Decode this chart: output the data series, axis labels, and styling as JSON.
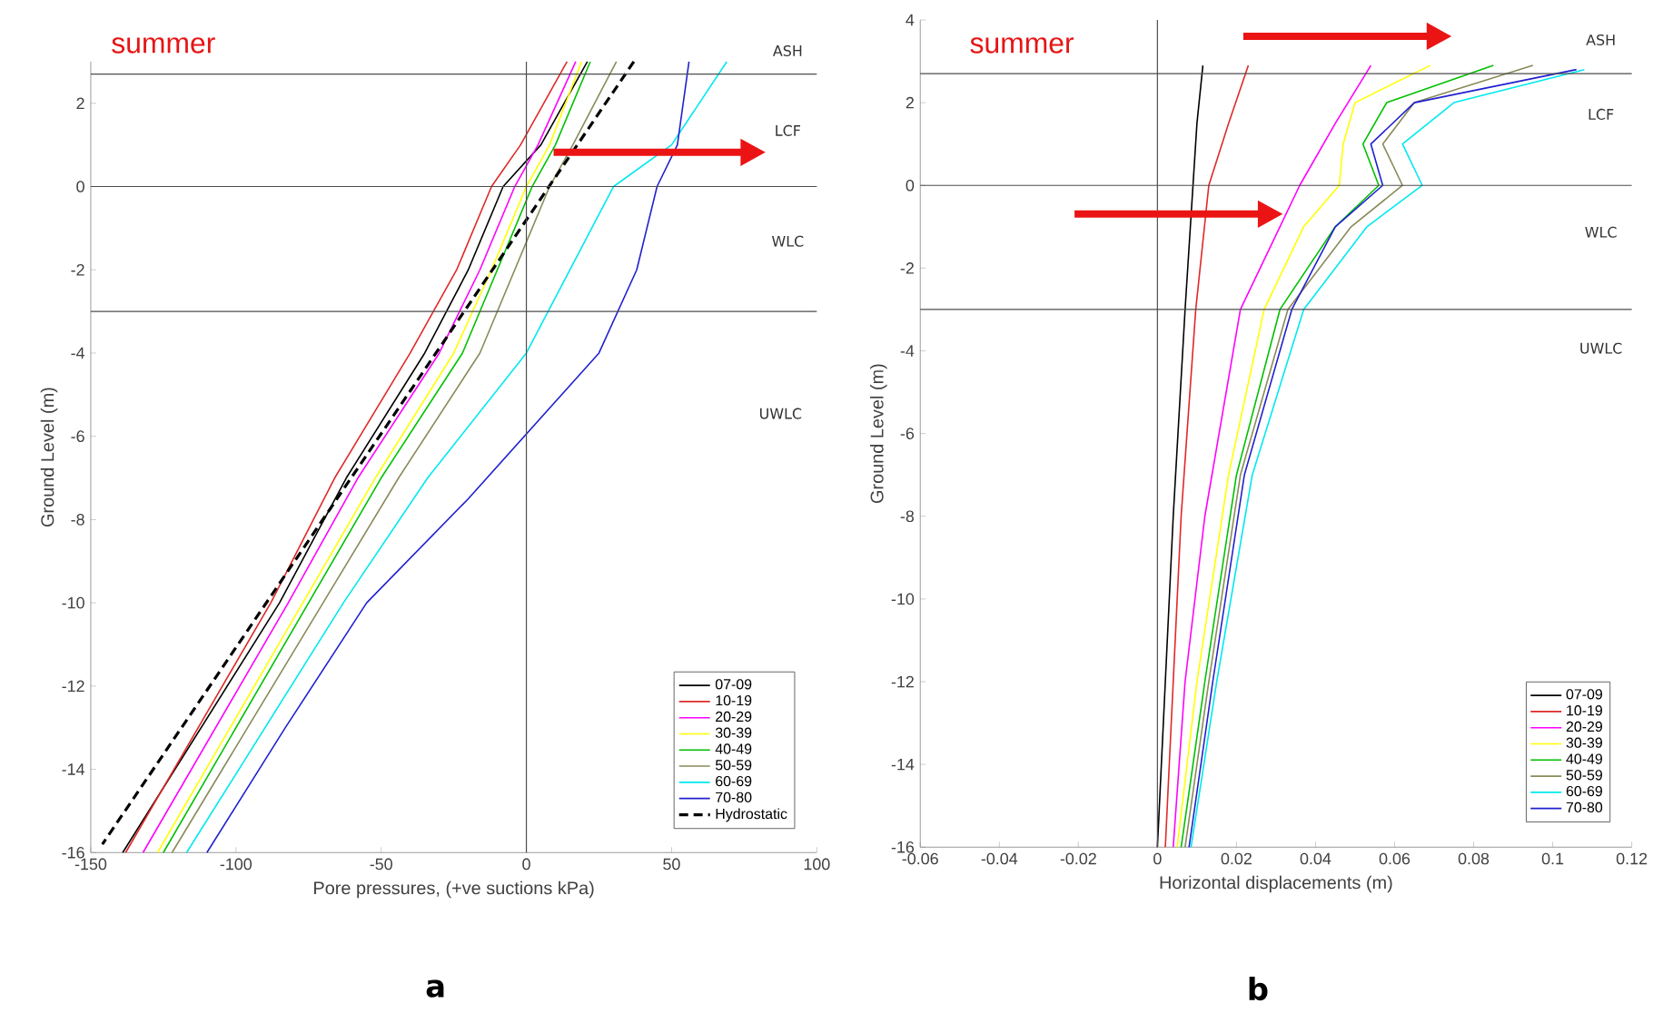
{
  "chart_data": [
    {
      "type": "line",
      "xlabel": "Pore pressures, (+ve suctions kPa)",
      "ylabel": "Ground Level (m)",
      "xlim": [
        -150,
        100
      ],
      "ylim": [
        -16,
        3
      ],
      "xticks": [
        -150,
        -100,
        -50,
        0,
        50,
        100
      ],
      "yticks": [
        -16,
        -14,
        -12,
        -10,
        -8,
        -6,
        -4,
        -2,
        0,
        2
      ],
      "legend": "bottom right",
      "ref_lines": [
        {
          "axis": "y",
          "value": 2.7
        },
        {
          "axis": "y",
          "value": 0
        },
        {
          "axis": "y",
          "value": -3
        },
        {
          "axis": "x",
          "value": 0
        }
      ],
      "annotations": [
        "summer",
        "a",
        "ASH",
        "LCF",
        "WLC",
        "UWLC"
      ],
      "series": [
        {
          "name": "07-09",
          "color": "#000000",
          "x": [
            21,
            5,
            -8,
            -20,
            -35,
            -62,
            -85,
            -112,
            -139
          ],
          "values": [
            3,
            1,
            0,
            -2,
            -4,
            -7,
            -10,
            -13,
            -16
          ]
        },
        {
          "name": "10-19",
          "color": "#e02828",
          "x": [
            14,
            -2,
            -12,
            -24,
            -40,
            -66,
            -88,
            -113,
            -138
          ],
          "values": [
            3,
            1,
            0,
            -2,
            -4,
            -7,
            -10,
            -13,
            -16
          ]
        },
        {
          "name": "20-29",
          "color": "#ff00ff",
          "x": [
            17,
            4,
            -4,
            -16,
            -30,
            -58,
            -82,
            -107,
            -132
          ],
          "values": [
            3,
            1,
            0,
            -2,
            -4,
            -7,
            -10,
            -13,
            -16
          ]
        },
        {
          "name": "30-39",
          "color": "#ffff00",
          "x": [
            19,
            8,
            0,
            -12,
            -25,
            -52,
            -77,
            -102,
            -127
          ],
          "values": [
            3,
            1,
            0,
            -2,
            -4,
            -7,
            -10,
            -13,
            -16
          ]
        },
        {
          "name": "40-49",
          "color": "#00c000",
          "x": [
            22,
            10,
            2,
            -10,
            -22,
            -50,
            -75,
            -100,
            -125
          ],
          "values": [
            3,
            1,
            0,
            -2,
            -4,
            -7,
            -10,
            -13,
            -16
          ]
        },
        {
          "name": "50-59",
          "color": "#8a8a5a",
          "x": [
            31,
            16,
            8,
            -4,
            -16,
            -44,
            -70,
            -96,
            -122
          ],
          "values": [
            3,
            1,
            0,
            -2,
            -4,
            -7,
            -10,
            -13,
            -16
          ]
        },
        {
          "name": "60-69",
          "color": "#00e8f0",
          "x": [
            69,
            50,
            30,
            15,
            0,
            -34,
            -63,
            -90,
            -117
          ],
          "values": [
            3,
            1,
            0,
            -2,
            -4,
            -7,
            -10,
            -13,
            -16
          ]
        },
        {
          "name": "70-80",
          "color": "#2020d0",
          "x": [
            56,
            52,
            45,
            38,
            25,
            -20,
            -55,
            -83,
            -110
          ],
          "values": [
            3,
            1,
            0,
            -2,
            -4,
            -7.5,
            -10,
            -13,
            -16
          ]
        },
        {
          "name": "Hydrostatic",
          "color": "#000000",
          "line_style": "dashed",
          "x": [
            37,
            -146
          ],
          "values": [
            3,
            -15.8
          ]
        }
      ]
    },
    {
      "type": "line",
      "xlabel": "Horizontal displacements (m)",
      "ylabel": "Ground Level (m)",
      "xlim": [
        -0.06,
        0.12
      ],
      "ylim": [
        -16,
        4
      ],
      "xticks": [
        -0.06,
        -0.04,
        -0.02,
        0,
        0.02,
        0.04,
        0.06,
        0.08,
        0.1,
        0.12
      ],
      "yticks": [
        -16,
        -14,
        -12,
        -10,
        -8,
        -6,
        -4,
        -2,
        0,
        2,
        4
      ],
      "legend": "bottom right",
      "ref_lines": [
        {
          "axis": "y",
          "value": 2.7
        },
        {
          "axis": "y",
          "value": 0
        },
        {
          "axis": "y",
          "value": -3
        },
        {
          "axis": "x",
          "value": 0
        }
      ],
      "annotations": [
        "summer",
        "b",
        "ASH",
        "LCF",
        "WLC",
        "UWLC"
      ],
      "series": [
        {
          "name": "07-09",
          "color": "#000000",
          "x": [
            0.0115,
            0.01,
            0.009,
            0.007,
            0.004,
            0.002,
            0.0
          ],
          "values": [
            2.9,
            1.5,
            0,
            -3,
            -8,
            -12,
            -16
          ]
        },
        {
          "name": "10-19",
          "color": "#e02828",
          "x": [
            0.023,
            0.018,
            0.013,
            0.0097,
            0.006,
            0.004,
            0.002
          ],
          "values": [
            2.9,
            1.5,
            0,
            -3,
            -8,
            -12,
            -16
          ]
        },
        {
          "name": "20-29",
          "color": "#ff00ff",
          "x": [
            0.054,
            0.045,
            0.036,
            0.021,
            0.012,
            0.007,
            0.004
          ],
          "values": [
            2.9,
            1.5,
            0,
            -3,
            -8,
            -12,
            -16
          ]
        },
        {
          "name": "30-39",
          "color": "#ffff00",
          "x": [
            0.069,
            0.05,
            0.047,
            0.046,
            0.037,
            0.027,
            0.018,
            0.01,
            0.005
          ],
          "values": [
            2.9,
            2,
            1,
            0,
            -1,
            -3,
            -7,
            -12,
            -16
          ]
        },
        {
          "name": "40-49",
          "color": "#00c000",
          "x": [
            0.085,
            0.058,
            0.052,
            0.056,
            0.045,
            0.031,
            0.02,
            0.012,
            0.006
          ],
          "values": [
            2.9,
            2,
            1,
            0,
            -1,
            -3,
            -7,
            -12,
            -16
          ]
        },
        {
          "name": "50-59",
          "color": "#8a8a5a",
          "x": [
            0.095,
            0.065,
            0.057,
            0.062,
            0.049,
            0.033,
            0.021,
            0.013,
            0.007
          ],
          "values": [
            2.9,
            2,
            1,
            0,
            -1,
            -3,
            -7,
            -12,
            -16
          ]
        },
        {
          "name": "60-69",
          "color": "#00e8f0",
          "x": [
            0.108,
            0.075,
            0.062,
            0.067,
            0.053,
            0.037,
            0.024,
            0.015,
            0.0085
          ],
          "values": [
            2.8,
            2,
            1,
            0,
            -1,
            -3,
            -7,
            -12,
            -16
          ]
        },
        {
          "name": "70-80",
          "color": "#2020d0",
          "x": [
            0.106,
            0.065,
            0.054,
            0.057,
            0.045,
            0.034,
            0.022,
            0.014,
            0.008
          ],
          "values": [
            2.8,
            2,
            1,
            0,
            -1,
            -3,
            -7,
            -12,
            -16
          ]
        }
      ]
    }
  ]
}
